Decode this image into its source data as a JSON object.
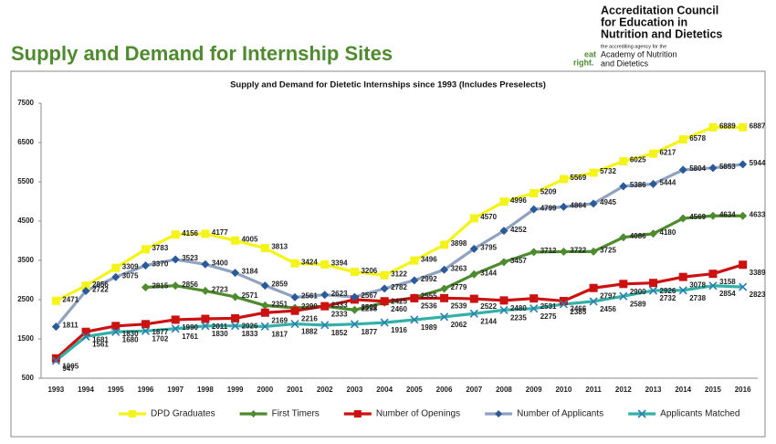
{
  "header": {
    "title": "Supply and Demand for Internship Sites",
    "org": [
      "Accreditation Council",
      "for Education in",
      "Nutrition and Dietetics"
    ],
    "tagline": "the accrediting agency for the",
    "academy": [
      "Academy of Nutrition",
      "and Dietetics"
    ],
    "logo": [
      "eat",
      "right."
    ]
  },
  "chart_data": {
    "type": "line",
    "title": "Supply and Demand for Dietetic Internships since 1993 (Includes Preselects)",
    "categories": [
      "1993",
      "1994",
      "1995",
      "1996",
      "1997",
      "1998",
      "1999",
      "2000",
      "2001",
      "2002",
      "2003",
      "2004",
      "2005",
      "2006",
      "2007",
      "2008",
      "2009",
      "2010",
      "2011",
      "2012",
      "2013",
      "2014",
      "2015",
      "2016"
    ],
    "ylim": [
      500,
      7500
    ],
    "yticks": [
      500,
      1500,
      2500,
      3500,
      4500,
      5500,
      6500,
      7500
    ],
    "legend": "bottom",
    "series": [
      {
        "name": "DPD Graduates",
        "color": "#f4f41a",
        "marker": "square",
        "marker_color": "#f4f41a",
        "values": [
          2471,
          2856,
          3309,
          3783,
          4156,
          4177,
          4005,
          3813,
          3424,
          3394,
          3206,
          3122,
          3496,
          3898,
          4570,
          4996,
          5209,
          5569,
          5732,
          6025,
          6217,
          6578,
          6889,
          6887
        ]
      },
      {
        "name": "First Timers",
        "color": "#4e8a2e",
        "marker": "diamond",
        "marker_color": "#4e8a2e",
        "values": [
          null,
          null,
          null,
          2815,
          2856,
          2723,
          2571,
          2351,
          2290,
          2333,
          2238,
          2425,
          2555,
          2779,
          3144,
          3457,
          3712,
          3722,
          3725,
          4086,
          4180,
          4569,
          4634,
          4633
        ]
      },
      {
        "name": "Number of Openings",
        "color": "#cc1111",
        "marker": "square",
        "marker_color": "#cc1111",
        "values": [
          1005,
          1681,
          1830,
          1877,
          1990,
          2011,
          2026,
          2169,
          2216,
          2333,
          2502,
          2460,
          2536,
          2539,
          2522,
          2480,
          2531,
          2466,
          2797,
          2900,
          2926,
          3078,
          3158,
          3389
        ]
      },
      {
        "name": "Number of Applicants",
        "color": "#8fa3c0",
        "marker": "diamond",
        "marker_color": "#2a5a9a",
        "values": [
          1811,
          2722,
          3075,
          3370,
          3523,
          3400,
          3184,
          2859,
          2561,
          2623,
          2567,
          2782,
          2992,
          3263,
          3795,
          4252,
          4799,
          4864,
          4945,
          5386,
          5444,
          5804,
          5853,
          5944
        ]
      },
      {
        "name": "Applicants Matched",
        "color": "#33b0a8",
        "marker": "x",
        "marker_color": "#2a7fb0",
        "values": [
          947,
          1561,
          1680,
          1702,
          1761,
          1830,
          1833,
          1817,
          1882,
          1852,
          1877,
          1916,
          1989,
          2062,
          2144,
          2235,
          2275,
          2385,
          2456,
          2589,
          2732,
          2738,
          2854,
          2823
        ]
      }
    ]
  }
}
